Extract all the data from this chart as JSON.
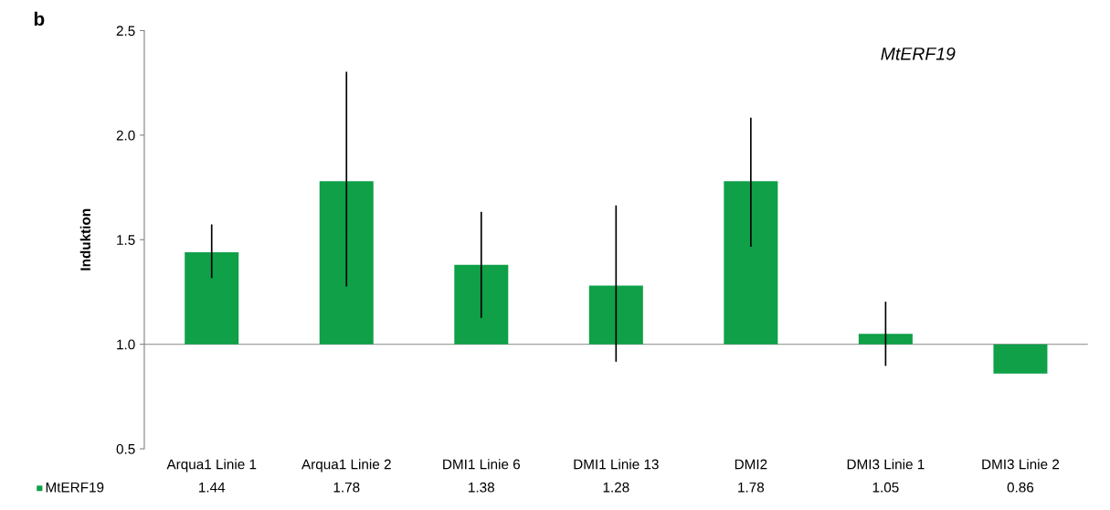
{
  "chart_data": {
    "type": "bar",
    "title": "MtERF19",
    "ylabel": "Induktion",
    "annotations": [
      "b"
    ],
    "categories": [
      "Arqua1 Linie 1",
      "Arqua1 Linie 2",
      "DMI1 Linie 6",
      "DMI1 Linie 13",
      "DMI2",
      "DMI3 Linie 1",
      "DMI3 Linie 2"
    ],
    "series": [
      {
        "name": "MtERF19",
        "color": "#0fa048",
        "base": [
          1,
          1,
          1,
          1,
          1,
          1,
          1
        ],
        "values": [
          0.44,
          0.78,
          0.38,
          0.28,
          0.78,
          0.05,
          -0.14
        ],
        "value_labels": [
          "1.44",
          "1.78",
          "1.38",
          "1.28",
          "1.78",
          "1.05",
          "0.86"
        ],
        "errors": [
          [
            1.32,
            1.57
          ],
          [
            1.28,
            2.3
          ],
          [
            1.13,
            1.63
          ],
          [
            0.92,
            1.66
          ],
          [
            1.47,
            2.08
          ],
          [
            0.9,
            1.2
          ],
          null
        ]
      }
    ],
    "ylim": [
      0.5,
      2.5
    ],
    "yticks": [
      {
        "value": 0.5,
        "label": "0.5"
      },
      {
        "value": 1.0,
        "label": "1.0"
      },
      {
        "value": 1.5,
        "label": "1.5"
      },
      {
        "value": 2.0,
        "label": "2.0"
      },
      {
        "value": 2.5,
        "label": "2.5"
      }
    ],
    "ref_lines": [
      {
        "axis": "y",
        "value": 1,
        "color": "#a0a0a0"
      }
    ],
    "legend": "bottom left",
    "grid": false
  }
}
